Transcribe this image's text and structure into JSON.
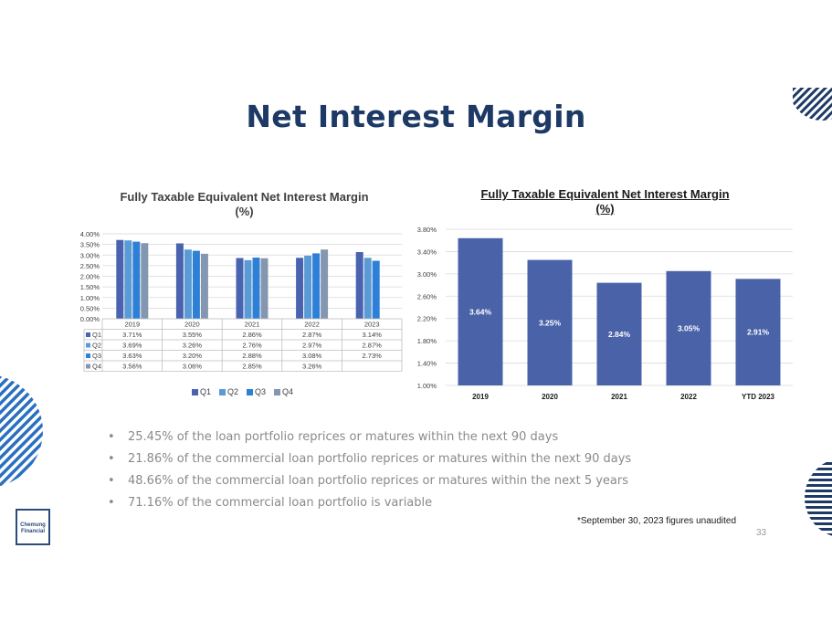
{
  "title": "Net Interest Margin",
  "chart_data": [
    {
      "type": "bar",
      "title": "Fully Taxable Equivalent Net Interest Margin (%)",
      "categories": [
        "2019",
        "2020",
        "2021",
        "2022",
        "2023"
      ],
      "series": [
        {
          "name": "Q1",
          "values": [
            3.71,
            3.55,
            2.86,
            2.87,
            3.14
          ],
          "labels": [
            "3.71%",
            "3.55%",
            "2.86%",
            "2.87%",
            "3.14%"
          ],
          "color": "#4a63b0"
        },
        {
          "name": "Q2",
          "values": [
            3.69,
            3.26,
            2.76,
            2.97,
            2.87
          ],
          "labels": [
            "3.69%",
            "3.26%",
            "2.76%",
            "2.97%",
            "2.87%"
          ],
          "color": "#5b9bd5"
        },
        {
          "name": "Q3",
          "values": [
            3.63,
            3.2,
            2.88,
            3.08,
            2.73
          ],
          "labels": [
            "3.63%",
            "3.20%",
            "2.88%",
            "3.08%",
            "2.73%"
          ],
          "color": "#2e7fd6"
        },
        {
          "name": "Q4",
          "values": [
            3.56,
            3.06,
            2.85,
            3.26,
            null
          ],
          "labels": [
            "3.56%",
            "3.06%",
            "2.85%",
            "3.26%",
            ""
          ],
          "color": "#8497b0"
        }
      ],
      "ylim": [
        0,
        4
      ],
      "yticks": [
        "0.00%",
        "0.50%",
        "1.00%",
        "1.50%",
        "2.00%",
        "2.50%",
        "3.00%",
        "3.50%",
        "4.00%"
      ],
      "legend": "bottom",
      "data_table": true,
      "grid": true
    },
    {
      "type": "bar",
      "title": "Fully Taxable Equivalent Net Interest Margin (%)",
      "categories": [
        "2019",
        "2020",
        "2021",
        "2022",
        "YTD 2023"
      ],
      "values": [
        3.64,
        3.25,
        2.84,
        3.05,
        2.91
      ],
      "labels": [
        "3.64%",
        "3.25%",
        "2.84%",
        "3.05%",
        "2.91%"
      ],
      "ylim": [
        1.0,
        3.8
      ],
      "yticks": [
        "1.00%",
        "1.40%",
        "1.80%",
        "2.20%",
        "2.60%",
        "3.00%",
        "3.40%",
        "3.80%"
      ],
      "color": "#4a63a8",
      "grid": true
    }
  ],
  "bullets": [
    "25.45% of the loan portfolio reprices or matures within the next 90 days",
    "21.86% of the commercial loan portfolio reprices or matures within the next 90 days",
    "48.66% of the commercial loan portfolio reprices or matures within the next 5 years",
    "71.16% of the commercial loan portfolio is variable"
  ],
  "bullet_char": "•",
  "footnote": "*September 30, 2023 figures unaudited",
  "page_number": "33",
  "logo": {
    "line1": "Chemung",
    "line2": "Financial"
  }
}
